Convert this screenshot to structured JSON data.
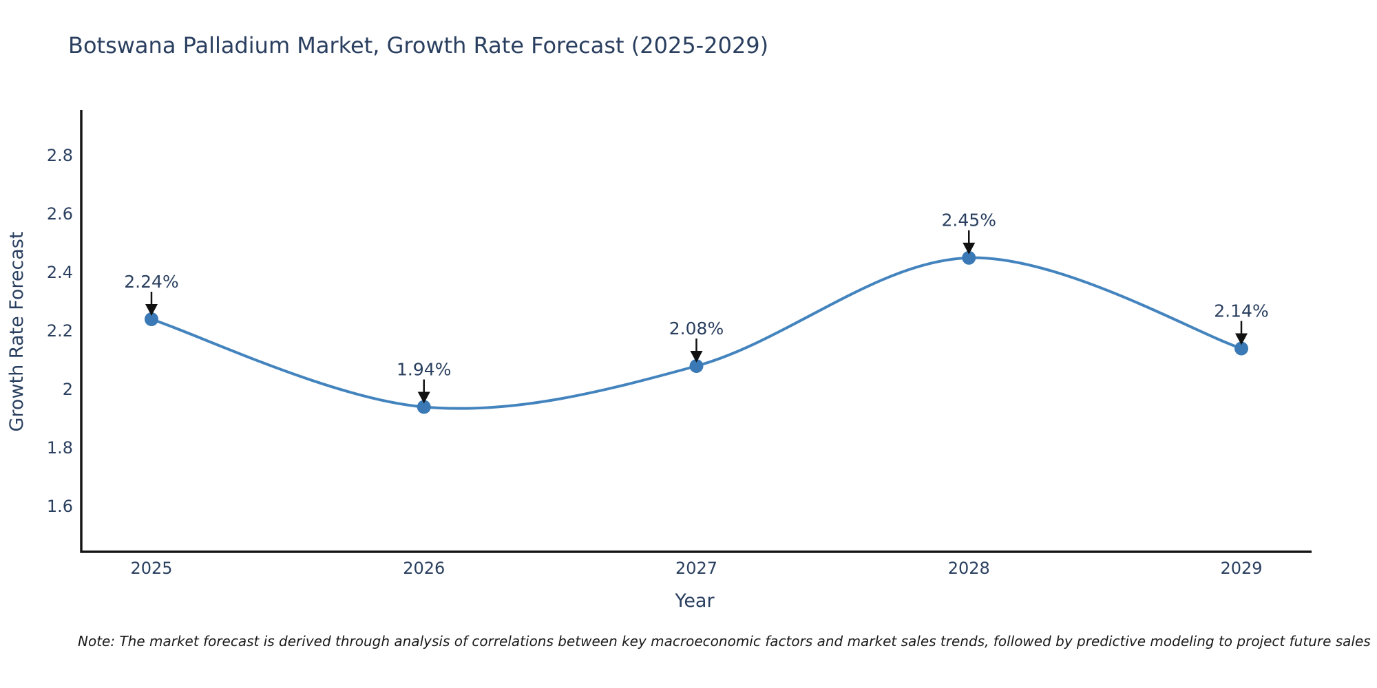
{
  "title": "Botswana Palladium Market, Growth Rate Forecast (2025-2029)",
  "note": "Note: The market forecast is derived through analysis of correlations between key macroeconomic factors and market sales trends, followed by predictive modeling to project future sales",
  "chart_data": {
    "type": "line",
    "title": "Botswana Palladium Market, Growth Rate Forecast (2025-2029)",
    "xlabel": "Year",
    "ylabel": "Growth Rate Forecast",
    "categories": [
      "2025",
      "2026",
      "2027",
      "2028",
      "2029"
    ],
    "values": [
      2.24,
      1.94,
      2.08,
      2.45,
      2.14
    ],
    "point_labels": [
      "2.24%",
      "1.94%",
      "2.08%",
      "2.45%",
      "2.14%"
    ],
    "yticks": [
      1.6,
      1.8,
      2,
      2.2,
      2.4,
      2.6,
      2.8
    ],
    "ytick_labels": [
      "1.6",
      "1.8",
      "2",
      "2.2",
      "2.4",
      "2.6",
      "2.8"
    ],
    "ylim": [
      1.445,
      2.955
    ],
    "grid": false,
    "legend": false,
    "line_shape": "spline",
    "annotation_style": "black-arrow-down",
    "colors": {
      "line": "#4484be",
      "marker": "#3a79b5",
      "axis": "#151515",
      "text": "#2a3f5f",
      "arrow": "#111111",
      "note_text": "#1a1a1a",
      "background": "#ffffff"
    }
  }
}
